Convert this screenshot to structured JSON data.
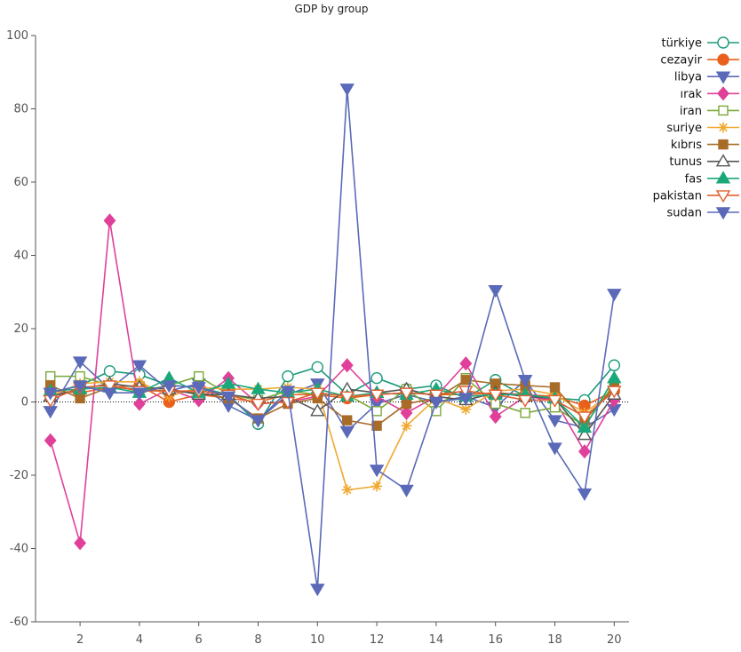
{
  "chart_data": {
    "type": "line",
    "title": "GDP by group",
    "xlabel": "",
    "ylabel": "",
    "xlim": [
      0.5,
      20.5
    ],
    "ylim": [
      -60,
      100
    ],
    "x": [
      1,
      2,
      3,
      4,
      5,
      6,
      7,
      8,
      9,
      10,
      11,
      12,
      13,
      14,
      15,
      16,
      17,
      18,
      19,
      20
    ],
    "xticks": [
      2,
      4,
      6,
      8,
      10,
      12,
      14,
      16,
      18,
      20
    ],
    "yticks": [
      -60,
      -40,
      -20,
      0,
      20,
      40,
      60,
      80,
      100
    ],
    "zero_line": true,
    "grid": false,
    "legend_position": "right",
    "series": [
      {
        "name": "türkiye",
        "color": "#1a9a7a",
        "marker": "circle-open",
        "values": [
          2.5,
          4.5,
          8.4,
          7.5,
          4.5,
          4.0,
          2.0,
          -6.0,
          7.0,
          9.5,
          2.0,
          6.5,
          3.5,
          4.5,
          1.0,
          6.0,
          1.5,
          1.0,
          0.5,
          10.0
        ]
      },
      {
        "name": "cezayir",
        "color": "#e8601c",
        "marker": "circle",
        "values": [
          3.0,
          2.5,
          4.0,
          4.5,
          0.0,
          2.0,
          1.0,
          0.0,
          2.0,
          2.0,
          1.0,
          2.0,
          2.5,
          2.0,
          2.0,
          2.5,
          2.0,
          1.5,
          -1.0,
          3.0
        ]
      },
      {
        "name": "libya",
        "color": "#5a6ab8",
        "marker": "triangle-down",
        "values": [
          -2.5,
          11.0,
          3.5,
          10.0,
          3.0,
          5.0,
          -1.0,
          -5.0,
          2.0,
          5.0,
          -8.0,
          -0.5,
          2.0,
          0.0,
          1.5,
          -1.5,
          6.0,
          -5.0,
          -7.0,
          -2.0
        ]
      },
      {
        "name": "ırak",
        "color": "#e0409a",
        "marker": "diamond",
        "values": [
          -10.5,
          -38.5,
          49.5,
          -0.5,
          3.5,
          0.5,
          6.5,
          -0.5,
          0.0,
          1.5,
          10.0,
          1.5,
          -3.0,
          1.5,
          10.5,
          -4.0,
          1.5,
          0.5,
          -13.5,
          0.5
        ]
      },
      {
        "name": "iran",
        "color": "#7aa838",
        "marker": "square-open",
        "values": [
          7.0,
          7.0,
          4.5,
          3.0,
          4.5,
          7.0,
          2.0,
          0.5,
          3.0,
          2.0,
          2.0,
          -2.5,
          3.5,
          -2.5,
          6.5,
          -0.5,
          -3.0,
          -1.5,
          -6.5,
          5.0
        ]
      },
      {
        "name": "suriye",
        "color": "#f0a830",
        "marker": "star",
        "values": [
          1.5,
          5.0,
          5.5,
          5.5,
          1.5,
          4.0,
          3.5,
          3.5,
          4.0,
          3.5,
          -24.0,
          -23.0,
          -6.5,
          1.0,
          -2.0,
          3.0,
          3.5,
          2.0,
          -3.0,
          3.0
        ]
      },
      {
        "name": "kıbrıs",
        "color": "#a86c28",
        "marker": "square",
        "values": [
          4.5,
          1.0,
          4.0,
          3.5,
          3.0,
          2.5,
          1.0,
          -4.5,
          -0.5,
          1.0,
          -5.0,
          -6.5,
          -0.5,
          1.0,
          6.0,
          5.0,
          4.5,
          4.0,
          -5.0,
          4.0
        ]
      },
      {
        "name": "tunus",
        "color": "#555555",
        "marker": "triangle-open",
        "values": [
          1.5,
          3.5,
          5.0,
          4.0,
          3.5,
          2.0,
          2.0,
          1.0,
          1.5,
          -2.5,
          3.5,
          2.5,
          3.5,
          1.5,
          0.5,
          2.5,
          1.5,
          1.0,
          -9.0,
          2.0
        ]
      },
      {
        "name": "fas",
        "color": "#1aa87a",
        "marker": "triangle",
        "values": [
          3.0,
          3.5,
          4.0,
          2.5,
          6.5,
          2.5,
          5.0,
          3.5,
          2.5,
          3.5,
          1.5,
          2.5,
          2.0,
          3.5,
          1.5,
          2.0,
          2.0,
          1.0,
          -7.0,
          6.5
        ]
      },
      {
        "name": "pakistan",
        "color": "#e06030",
        "marker": "triangle-down-open",
        "values": [
          0.5,
          4.0,
          4.5,
          3.0,
          3.0,
          3.0,
          2.0,
          -0.5,
          0.0,
          2.5,
          1.5,
          2.0,
          2.5,
          2.0,
          3.0,
          2.0,
          0.5,
          0.5,
          -4.0,
          3.0
        ]
      },
      {
        "name": "sudan",
        "color": "#5a6ab8",
        "marker": "triangle-down",
        "values": [
          2.5,
          4.5,
          2.5,
          2.5,
          4.5,
          4.0,
          1.5,
          -5.0,
          3.0,
          -51.0,
          85.5,
          -18.5,
          -24.0,
          0.0,
          1.0,
          30.5,
          6.0,
          -12.5,
          -25.0,
          29.5
        ]
      }
    ]
  }
}
